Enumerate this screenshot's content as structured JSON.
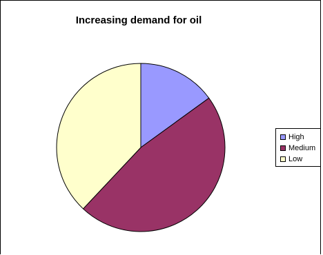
{
  "chart_data": {
    "type": "pie",
    "title": "Increasing demand for oil",
    "categories": [
      "High",
      "Medium",
      "Low"
    ],
    "values": [
      15,
      47,
      38
    ],
    "colors": [
      "#9999ff",
      "#993366",
      "#ffffcc"
    ],
    "legend_position": "right",
    "start": "top",
    "direction": "clockwise"
  }
}
